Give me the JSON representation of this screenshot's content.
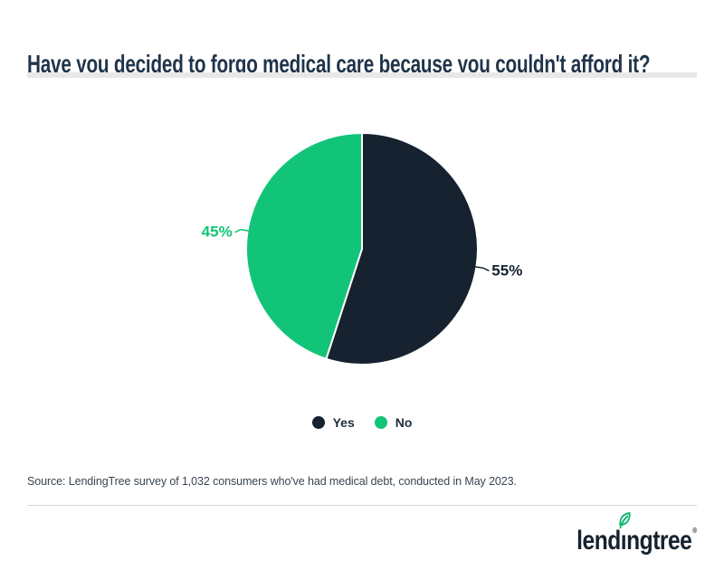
{
  "header": {
    "title": "Have you decided to forgo medical care because you couldn't afford it?"
  },
  "chart_data": {
    "type": "pie",
    "title": "Have you decided to forgo medical care because you couldn't afford it?",
    "categories": [
      "Yes",
      "No"
    ],
    "values": [
      55,
      45
    ],
    "labels": [
      "55%",
      "45%"
    ],
    "colors": [
      "#16222F",
      "#12C478"
    ],
    "start_angle_deg": 0,
    "direction": "clockwise",
    "legend_position": "bottom",
    "slices": [
      {
        "label": "Yes",
        "value": 55,
        "display": "55%",
        "color": "#16222F"
      },
      {
        "label": "No",
        "value": 45,
        "display": "45%",
        "color": "#12C478"
      }
    ]
  },
  "source": {
    "text": "Source: LendingTree survey of 1,032 consumers who've had medical debt, conducted in May 2023."
  },
  "footer": {
    "logo": {
      "full_name": "lendingtree",
      "part_before_leaf": "lend",
      "leaf_letter": "ı",
      "part_after_leaf": "ngtree",
      "registered": "®",
      "wordmark_color": "#16222F",
      "leaf_color": "#12B56F"
    }
  }
}
